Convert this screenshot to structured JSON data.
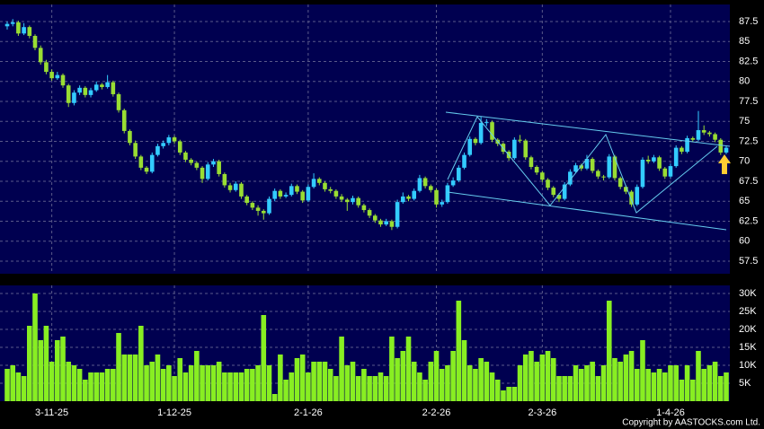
{
  "chart_data": [
    {
      "type": "candlestick",
      "categories": [
        null,
        null,
        null,
        null,
        null,
        null,
        null,
        null,
        "3-11-25",
        null,
        null,
        null,
        null,
        null,
        null,
        null,
        null,
        null,
        null,
        null,
        null,
        null,
        null,
        null,
        null,
        null,
        null,
        null,
        null,
        null,
        "1-12-25",
        null,
        null,
        null,
        null,
        null,
        null,
        null,
        null,
        null,
        null,
        null,
        null,
        null,
        null,
        null,
        null,
        null,
        null,
        null,
        null,
        null,
        null,
        null,
        "2-1-26",
        null,
        null,
        null,
        null,
        null,
        null,
        null,
        null,
        null,
        null,
        null,
        null,
        null,
        null,
        null,
        null,
        null,
        null,
        null,
        null,
        null,
        null,
        "2-2-26",
        null,
        null,
        null,
        null,
        null,
        null,
        null,
        null,
        null,
        null,
        null,
        null,
        null,
        null,
        null,
        null,
        null,
        null,
        "2-3-26",
        null,
        null,
        null,
        null,
        null,
        null,
        null,
        null,
        null,
        null,
        null,
        null,
        null,
        null,
        null,
        null,
        null,
        null,
        null,
        null,
        null,
        null,
        "1-4-26",
        null,
        null,
        null,
        null,
        null,
        null,
        null,
        null,
        null,
        null
      ],
      "open": [
        86.9,
        87.2,
        87.4,
        86,
        86.8,
        85.7,
        84.2,
        82.4,
        81.2,
        80.4,
        80.8,
        79.5,
        77.3,
        78.6,
        79.2,
        78.3,
        78.9,
        79.6,
        79.3,
        79.9,
        78.4,
        76.4,
        73.8,
        72.3,
        70.6,
        69.2,
        68.7,
        70.8,
        71.9,
        72.3,
        73,
        72.5,
        71.1,
        70.2,
        69.8,
        69.2,
        67.8,
        69.6,
        70,
        68.4,
        67,
        66.4,
        67.2,
        65.6,
        64.8,
        64.2,
        63.8,
        63.5,
        65.3,
        66.3,
        65.6,
        65.8,
        66.9,
        66.2,
        65.1,
        66.8,
        67.8,
        67.3,
        66.5,
        66.3,
        65.6,
        65.2,
        64.9,
        65.4,
        64.5,
        63.9,
        63.2,
        62.6,
        62.1,
        62.5,
        61.8,
        64.9,
        65.6,
        65.3,
        66.3,
        67.9,
        66.9,
        66.4,
        64.6,
        64.9,
        67,
        67.6,
        69.2,
        70.8,
        72.8,
        72.3,
        74.8,
        74.9,
        72.7,
        72.2,
        71.2,
        70.4,
        72.7,
        72.6,
        70.5,
        69.3,
        68.6,
        67.7,
        66.7,
        65.8,
        65.3,
        67.1,
        68.7,
        69.5,
        69.1,
        70.3,
        68.8,
        68.1,
        68,
        70.6,
        67.9,
        66.8,
        66.2,
        64.6,
        66.8,
        70.2,
        70,
        70.5,
        69.1,
        68.1,
        69.4,
        71.7,
        71.2,
        72.9,
        72.7,
        73.9,
        73.6,
        73.4,
        72.7,
        71.1
      ],
      "high": [
        87.5,
        87.8,
        87.6,
        87.3,
        87,
        85.9,
        84.5,
        82.7,
        81.5,
        81.2,
        81,
        79.7,
        78.9,
        79.5,
        79.4,
        79.2,
        80,
        79.8,
        80.8,
        80.1,
        78.6,
        76.6,
        74,
        72.6,
        70.8,
        69.4,
        71.1,
        72.2,
        72.6,
        73.3,
        73.2,
        72.7,
        71.3,
        70.4,
        70,
        69.4,
        69.9,
        70.3,
        70.2,
        68.6,
        67.3,
        67.5,
        67.4,
        65.8,
        65,
        64.5,
        64,
        65.6,
        66.6,
        66.5,
        66.1,
        67.2,
        67.1,
        66.4,
        67.1,
        68.5,
        68,
        67.5,
        66.8,
        66.5,
        65.9,
        65.4,
        65.7,
        65.6,
        64.7,
        64.1,
        63.4,
        62.8,
        62.8,
        62.7,
        65.2,
        66.1,
        65.8,
        66.6,
        68.3,
        68.1,
        67.1,
        66.6,
        65.2,
        67.3,
        68,
        69.5,
        71.1,
        73.1,
        73,
        75.6,
        75.3,
        75.1,
        72.9,
        72.4,
        71.4,
        73,
        73.3,
        72.8,
        70.7,
        69.5,
        68.8,
        67.9,
        66.9,
        66,
        67.4,
        69,
        69.8,
        69.7,
        70.8,
        70.5,
        69,
        68.3,
        70.9,
        70.8,
        68.1,
        67,
        66.4,
        67.1,
        70.5,
        70.7,
        70.8,
        70.7,
        69.3,
        69.7,
        72,
        71.9,
        73.2,
        73.1,
        76.3,
        74.5,
        73.8,
        73.6,
        72.9,
        72
      ],
      "low": [
        86.5,
        86.9,
        85.7,
        85.8,
        85.4,
        83.9,
        82.1,
        80.9,
        80.1,
        80.2,
        79.2,
        76.8,
        77,
        78.3,
        78,
        78,
        78.7,
        79,
        79.1,
        78.1,
        76.1,
        73.5,
        72,
        70.3,
        68.9,
        68.4,
        68.5,
        70.6,
        71.6,
        72,
        72.2,
        70.8,
        69.9,
        69.5,
        68.9,
        67.3,
        67.6,
        69.3,
        68.1,
        66.7,
        66.1,
        66.2,
        65.3,
        64.5,
        63.9,
        63.2,
        62.7,
        63.3,
        65,
        65.3,
        65.4,
        65.6,
        65.9,
        64.8,
        64.9,
        66.6,
        67,
        66.2,
        66,
        65.3,
        64.9,
        63.8,
        64.6,
        64.2,
        63.6,
        62.9,
        62.3,
        61.8,
        61.9,
        61.4,
        61.6,
        64.7,
        65,
        65.1,
        66.1,
        66.6,
        66.1,
        64.2,
        64.3,
        64.7,
        66.8,
        67.4,
        69,
        70.6,
        72,
        72.1,
        74.4,
        72.4,
        71.9,
        70.9,
        70.1,
        70.2,
        72.3,
        70.2,
        69,
        68.3,
        67.4,
        66.4,
        65.5,
        64.9,
        65.1,
        66.9,
        68.5,
        68.8,
        68.9,
        68.5,
        67.8,
        67.6,
        67.8,
        67.6,
        66.5,
        65.9,
        64.3,
        64.4,
        66.6,
        69.7,
        69.8,
        68.8,
        67.8,
        67.9,
        69.2,
        70.9,
        71,
        72.4,
        72.5,
        73.3,
        73.1,
        72.4,
        70.8,
        70.9
      ],
      "close": [
        87.2,
        87.4,
        86,
        86.8,
        85.7,
        84.2,
        82.4,
        81.2,
        80.4,
        80.8,
        79.5,
        77.3,
        78.6,
        79.2,
        78.3,
        78.9,
        79.6,
        79.3,
        79.9,
        78.4,
        76.4,
        73.8,
        72.3,
        70.6,
        69.2,
        68.7,
        70.8,
        71.9,
        72.3,
        73,
        72.5,
        71.1,
        70.2,
        69.8,
        69.2,
        67.8,
        69.6,
        70,
        68.4,
        67,
        66.4,
        67.2,
        65.6,
        64.8,
        64.2,
        63.8,
        63.5,
        65.3,
        66.3,
        65.6,
        65.8,
        66.9,
        66.2,
        65.1,
        66.8,
        67.8,
        67.3,
        66.5,
        66.3,
        65.6,
        65.2,
        64.9,
        65.4,
        64.5,
        63.9,
        63.2,
        62.6,
        62.1,
        62.5,
        61.8,
        64.9,
        65.6,
        65.3,
        66.3,
        67.9,
        66.9,
        66.4,
        64.6,
        64.9,
        67,
        67.6,
        69.2,
        70.8,
        72.8,
        72.3,
        74.8,
        74.9,
        72.7,
        72.2,
        71.2,
        70.4,
        72.7,
        72.6,
        70.5,
        69.3,
        68.6,
        67.7,
        66.7,
        65.8,
        65.3,
        67.1,
        68.7,
        69.5,
        69.1,
        70.3,
        68.8,
        68.1,
        68,
        70.6,
        67.9,
        66.8,
        66.2,
        64.6,
        66.8,
        70.2,
        70,
        70.5,
        69.1,
        68.1,
        69.4,
        71.7,
        71.2,
        72.9,
        72.7,
        73.9,
        73.6,
        73.4,
        72.7,
        71.1,
        71.7
      ],
      "up_color": "#33ccff",
      "down_color": "#99dd33",
      "ylim": [
        55.93,
        89.63
      ],
      "yticks": [
        57.5,
        60,
        62.5,
        65,
        67.5,
        70,
        72.5,
        75,
        77.5,
        80,
        82.5,
        85,
        87.5
      ],
      "grid": true
    },
    {
      "type": "bar",
      "values": [
        9000,
        10000,
        8000,
        7000,
        21000,
        30000,
        17000,
        21000,
        11000,
        17000,
        18000,
        11000,
        10000,
        9000,
        6000,
        8000,
        8000,
        8000,
        9000,
        9000,
        19000,
        13000,
        13000,
        13000,
        21000,
        10000,
        11000,
        13000,
        9000,
        10000,
        7000,
        12000,
        8000,
        10000,
        14000,
        10000,
        10000,
        10000,
        11000,
        8000,
        8000,
        8000,
        8000,
        9000,
        9000,
        10000,
        24000,
        10000,
        2000,
        13000,
        6000,
        8000,
        12000,
        13000,
        8000,
        11000,
        11000,
        11000,
        9000,
        7000,
        18000,
        10000,
        11000,
        7000,
        9000,
        7000,
        7000,
        8000,
        7000,
        18000,
        12000,
        14000,
        18000,
        11000,
        8000,
        6000,
        11000,
        14000,
        9000,
        10000,
        14000,
        28000,
        17000,
        10000,
        9000,
        12000,
        11000,
        8000,
        6000,
        3000,
        4000,
        4000,
        10000,
        13000,
        14000,
        11000,
        13000,
        14000,
        12000,
        7000,
        7000,
        7000,
        10000,
        9000,
        10000,
        11000,
        7000,
        10000,
        28000,
        12000,
        11000,
        13000,
        14000,
        9000,
        17000,
        9000,
        8000,
        9000,
        8000,
        10000,
        10000,
        6000,
        10000,
        6000,
        14000,
        9000,
        10000,
        11000,
        7000,
        8000
      ],
      "color": "#88ee22",
      "ylim": [
        0,
        32250
      ],
      "yticks": [
        {
          "value": 5000,
          "label": "5K"
        },
        {
          "value": 10000,
          "label": "10K"
        },
        {
          "value": 15000,
          "label": "15K"
        },
        {
          "value": 20000,
          "label": "20K"
        },
        {
          "value": 25000,
          "label": "25K"
        },
        {
          "value": 30000,
          "label": "30K"
        }
      ],
      "grid": true
    }
  ],
  "copyright": "Copyright by AASTOCKS.com Ltd."
}
